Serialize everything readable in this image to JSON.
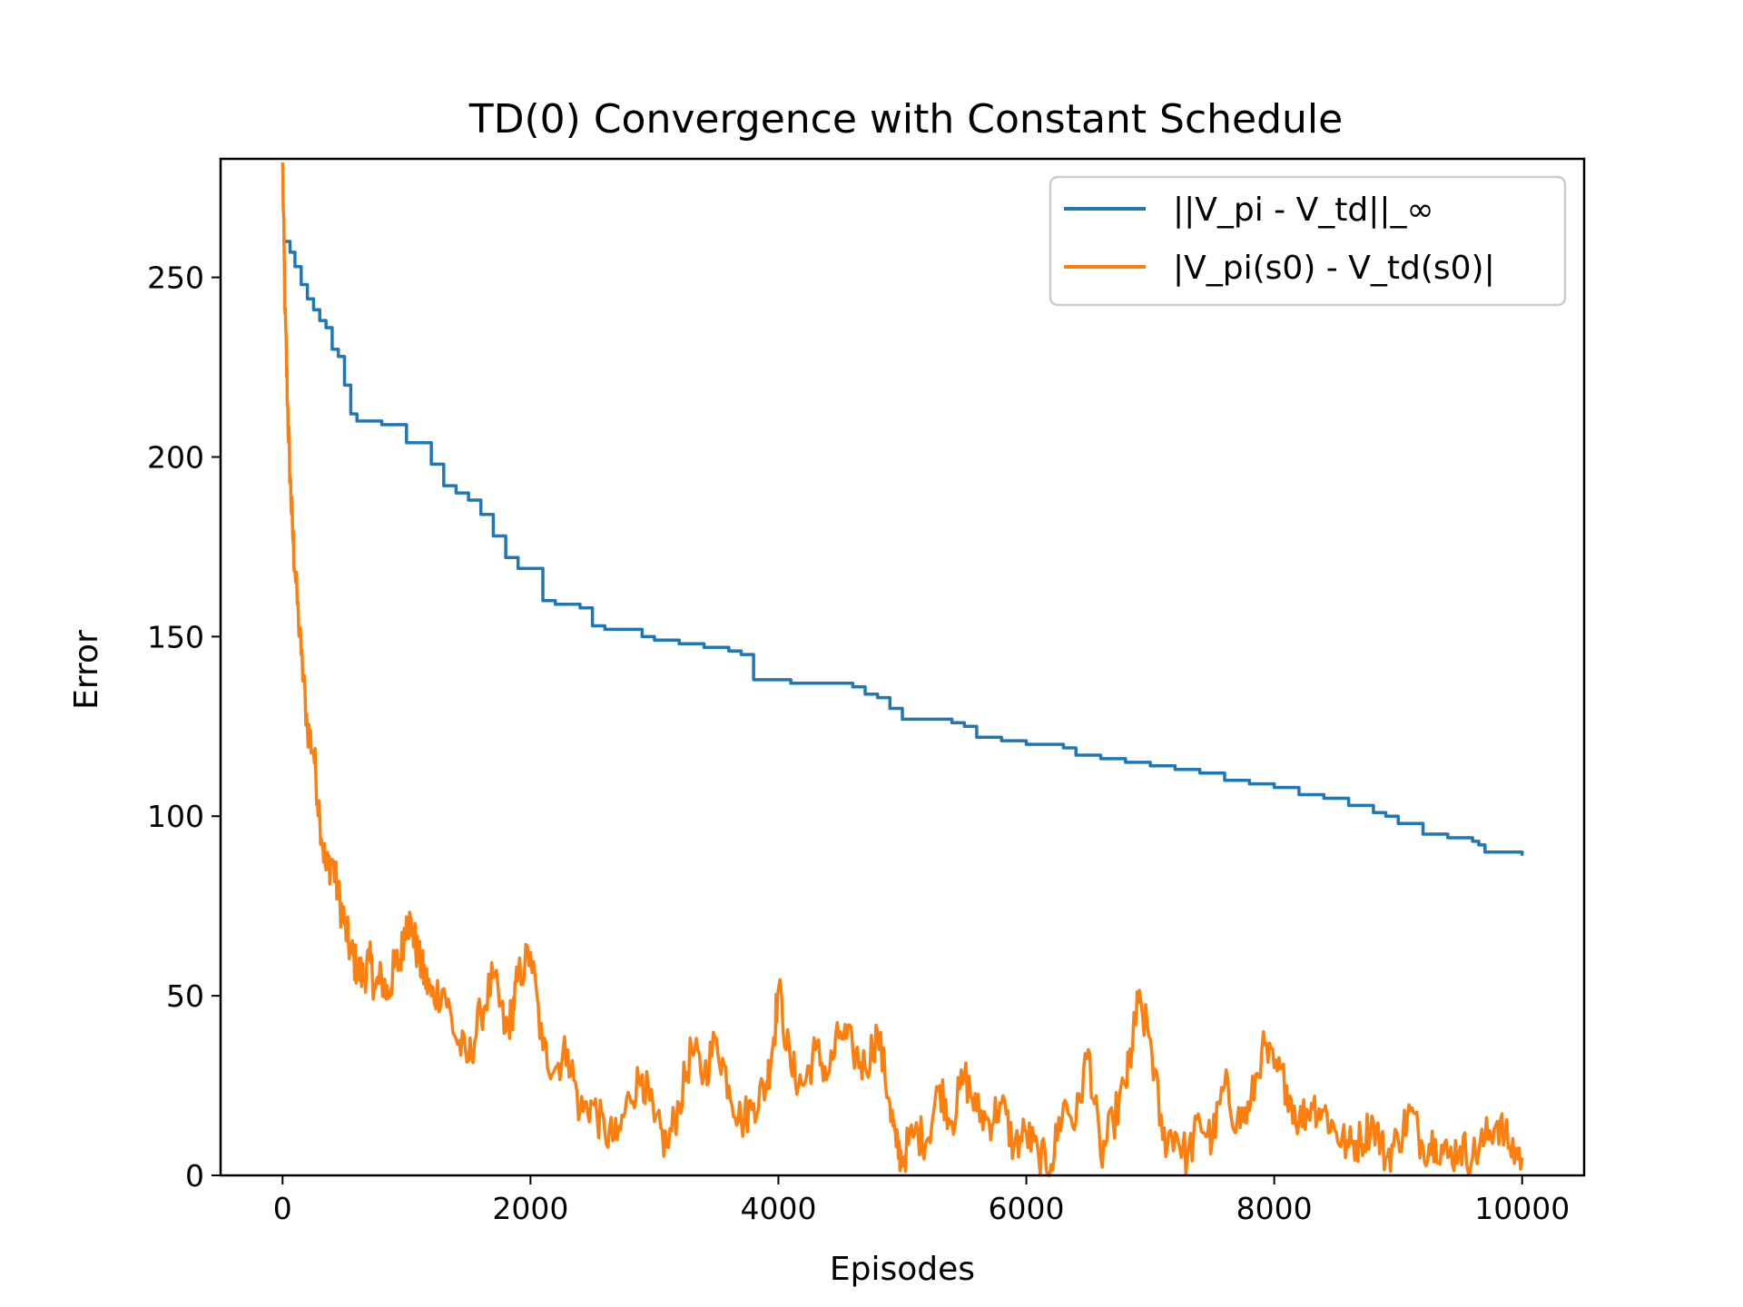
{
  "chart_data": {
    "type": "line",
    "title": "TD(0) Convergence with Constant Schedule",
    "xlabel": "Episodes",
    "ylabel": "Error",
    "xlim": [
      -500,
      10500
    ],
    "ylim": [
      0,
      283
    ],
    "x_ticks": [
      0,
      2000,
      4000,
      6000,
      8000,
      10000
    ],
    "y_ticks": [
      0,
      50,
      100,
      150,
      200,
      250
    ],
    "grid": false,
    "legend_position": "top-right",
    "series": [
      {
        "name": "||V_pi - V_td||_∞",
        "color": "#1f77b4",
        "x": [
          0,
          60,
          100,
          150,
          200,
          250,
          300,
          350,
          400,
          450,
          500,
          550,
          600,
          700,
          800,
          900,
          1000,
          1100,
          1200,
          1300,
          1400,
          1500,
          1600,
          1700,
          1800,
          1900,
          2000,
          2100,
          2200,
          2300,
          2400,
          2500,
          2600,
          2700,
          2800,
          2900,
          3000,
          3100,
          3200,
          3300,
          3400,
          3500,
          3600,
          3700,
          3800,
          3900,
          4000,
          4100,
          4200,
          4300,
          4400,
          4500,
          4600,
          4700,
          4800,
          4900,
          5000,
          5200,
          5400,
          5500,
          5600,
          5800,
          6000,
          6200,
          6300,
          6400,
          6600,
          6800,
          7000,
          7200,
          7400,
          7600,
          7800,
          8000,
          8200,
          8400,
          8600,
          8800,
          8900,
          9000,
          9200,
          9400,
          9500,
          9600,
          9650,
          9700,
          10000
        ],
        "values": [
          260,
          257,
          253,
          248,
          244,
          241,
          238,
          236,
          230,
          228,
          220,
          212,
          210,
          210,
          209,
          209,
          204,
          204,
          198,
          192,
          190,
          188,
          184,
          178,
          172,
          169,
          169,
          160,
          159,
          159,
          158,
          153,
          152,
          152,
          152,
          150,
          149,
          149,
          148,
          148,
          147,
          147,
          146,
          145,
          138,
          138,
          138,
          137,
          137,
          137,
          137,
          137,
          136,
          134,
          133,
          130,
          127,
          127,
          126,
          125,
          122,
          121,
          120,
          120,
          119,
          117,
          116,
          115,
          114,
          113,
          112,
          110,
          109,
          108,
          106,
          105,
          103,
          101,
          100,
          98,
          95,
          94,
          94,
          93,
          92,
          90,
          89
        ],
        "noise": 0
      },
      {
        "name": "|V_pi(s0) - V_td(s0)|",
        "color": "#ff7f0e",
        "x": [
          0,
          20,
          40,
          60,
          80,
          100,
          150,
          200,
          250,
          300,
          350,
          400,
          450,
          500,
          550,
          600,
          650,
          700,
          750,
          800,
          850,
          900,
          950,
          1000,
          1050,
          1100,
          1150,
          1200,
          1300,
          1400,
          1500,
          1600,
          1700,
          1800,
          1850,
          1900,
          2000,
          2100,
          2200,
          2300,
          2400,
          2500,
          2600,
          2700,
          2800,
          2900,
          3000,
          3100,
          3200,
          3300,
          3400,
          3500,
          3600,
          3700,
          3800,
          3900,
          3950,
          4000,
          4100,
          4200,
          4300,
          4400,
          4500,
          4600,
          4700,
          4800,
          4900,
          4950,
          5000,
          5100,
          5200,
          5300,
          5400,
          5500,
          5600,
          5700,
          5800,
          5900,
          6000,
          6100,
          6200,
          6300,
          6400,
          6500,
          6600,
          6700,
          6800,
          6850,
          6900,
          7000,
          7100,
          7200,
          7300,
          7400,
          7500,
          7600,
          7700,
          7800,
          7900,
          8000,
          8100,
          8200,
          8300,
          8400,
          8500,
          8600,
          8700,
          8800,
          8900,
          9000,
          9100,
          9200,
          9300,
          9400,
          9500,
          9600,
          9700,
          9800,
          9900,
          10000
        ],
        "values": [
          282,
          240,
          215,
          195,
          180,
          168,
          145,
          125,
          118,
          100,
          85,
          88,
          78,
          70,
          62,
          58,
          55,
          60,
          52,
          55,
          50,
          58,
          60,
          72,
          68,
          60,
          55,
          50,
          52,
          38,
          32,
          45,
          55,
          40,
          45,
          55,
          62,
          35,
          30,
          35,
          18,
          20,
          12,
          10,
          22,
          28,
          15,
          8,
          20,
          35,
          28,
          38,
          25,
          15,
          20,
          25,
          35,
          52,
          30,
          25,
          35,
          28,
          40,
          35,
          30,
          40,
          20,
          8,
          5,
          12,
          10,
          25,
          15,
          28,
          18,
          15,
          20,
          8,
          12,
          5,
          3,
          20,
          15,
          35,
          5,
          15,
          25,
          35,
          48,
          38,
          10,
          12,
          5,
          15,
          10,
          25,
          15,
          18,
          35,
          30,
          25,
          15,
          20,
          18,
          12,
          8,
          10,
          15,
          5,
          10,
          18,
          8,
          10,
          5,
          8,
          5,
          10,
          15,
          8,
          5
        ],
        "noise": 6
      }
    ]
  }
}
